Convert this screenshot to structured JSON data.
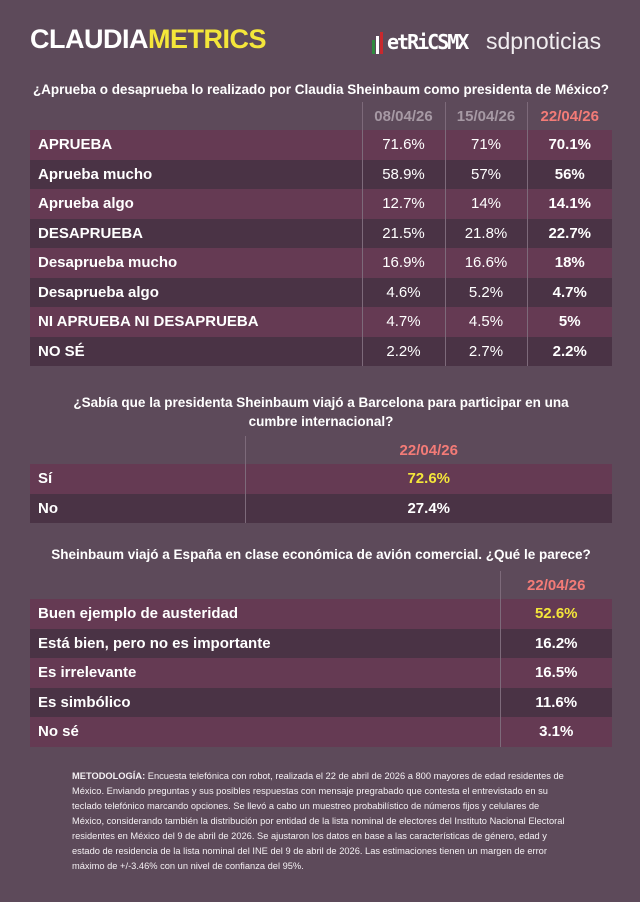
{
  "header": {
    "brand_a": "CLAUDIA",
    "brand_b": "METRICS",
    "metrics_logo": "etRiCSMX",
    "sdp_logo": "sdpnoticias"
  },
  "colors": {
    "accent_yellow": "#f4e63a",
    "current_date": "#f37b77"
  },
  "q1": {
    "question": "¿Aprueba o desaprueba lo realizado por Claudia Sheinbaum como presidenta de México?",
    "dates": [
      "08/04/26",
      "15/04/26",
      "22/04/26"
    ],
    "rows": [
      {
        "label": "APRUEBA",
        "values": [
          "71.6%",
          "71%",
          "70.1%"
        ]
      },
      {
        "label": "Aprueba mucho",
        "values": [
          "58.9%",
          "57%",
          "56%"
        ]
      },
      {
        "label": "Aprueba algo",
        "values": [
          "12.7%",
          "14%",
          "14.1%"
        ]
      },
      {
        "label": "DESAPRUEBA",
        "values": [
          "21.5%",
          "21.8%",
          "22.7%"
        ]
      },
      {
        "label": "Desaprueba mucho",
        "values": [
          "16.9%",
          "16.6%",
          "18%"
        ]
      },
      {
        "label": "Desaprueba algo",
        "values": [
          "4.6%",
          "5.2%",
          "4.7%"
        ]
      },
      {
        "label": "NI APRUEBA NI DESAPRUEBA",
        "values": [
          "4.7%",
          "4.5%",
          "5%"
        ]
      },
      {
        "label": "NO SÉ",
        "values": [
          "2.2%",
          "2.7%",
          "2.2%"
        ]
      }
    ]
  },
  "q2": {
    "question": "¿Sabía que la presidenta Sheinbaum viajó a Barcelona para participar en una cumbre internacional?",
    "date": "22/04/26",
    "rows": [
      {
        "label": "Sí",
        "value": "72.6%"
      },
      {
        "label": "No",
        "value": "27.4%"
      }
    ]
  },
  "q3": {
    "question": "Sheinbaum viajó a España en clase económica de avión comercial. ¿Qué le parece?",
    "date": "22/04/26",
    "rows": [
      {
        "label": "Buen ejemplo de austeridad",
        "value": "52.6%"
      },
      {
        "label": "Está bien, pero no es importante",
        "value": "16.2%"
      },
      {
        "label": "Es irrelevante",
        "value": "16.5%"
      },
      {
        "label": "Es simbólico",
        "value": "11.6%"
      },
      {
        "label": "No sé",
        "value": "3.1%"
      }
    ]
  },
  "methodology": {
    "title": "METODOLOGÍA:",
    "text": " Encuesta telefónica con robot, realizada el 22 de abril de 2026 a 800 mayores de edad residentes de México. Enviando preguntas y sus posibles respuestas con mensaje pregrabado que contesta el entrevistado en su teclado telefónico marcando opciones. Se llevó a cabo un muestreo probabilístico de números fijos y celulares de México, considerando también la distribución por entidad de la lista nominal de electores del Instituto Nacional Electoral residentes en México del 9 de abril de 2026. Se ajustaron los datos en base a las características de género, edad y estado de residencia de la lista nominal del INE del 9 de abril de 2026. Las estimaciones tienen un margen de error máximo de +/-3.46% con un nivel de confianza del 95%."
  }
}
